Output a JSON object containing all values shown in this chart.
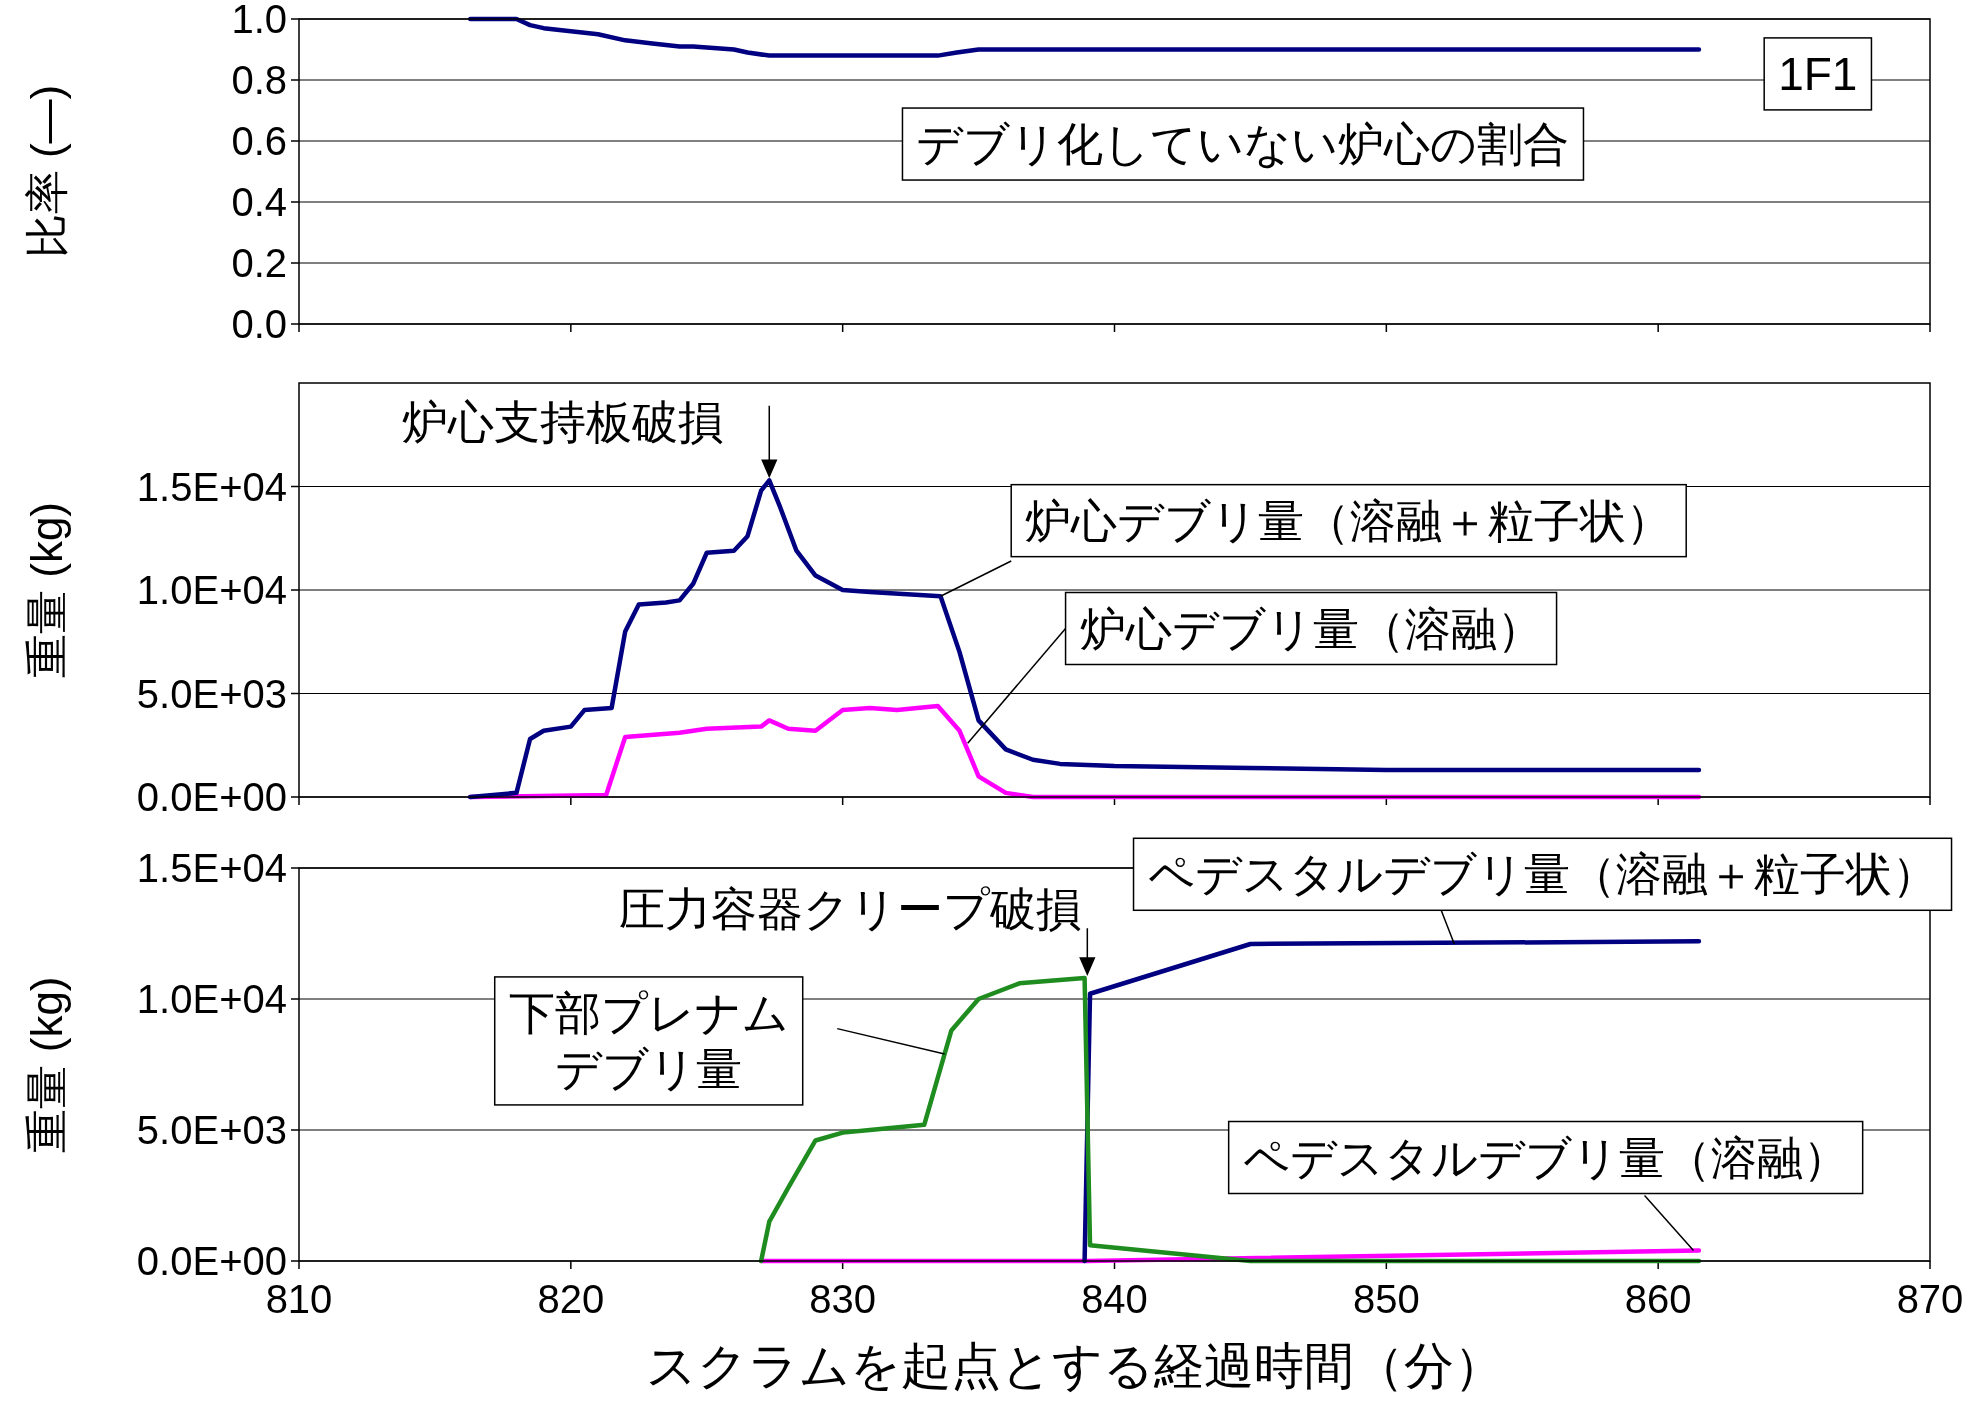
{
  "chart_data": [
    {
      "type": "line",
      "ylabel": "比率 (—)",
      "xlim": [
        810,
        870
      ],
      "xticks": [
        810,
        820,
        830,
        840,
        850,
        860,
        870
      ],
      "tick_labels": "y",
      "ylim": [
        0,
        1
      ],
      "yticks": [
        {
          "value": 0,
          "label": "0.0"
        },
        {
          "value": 0.2,
          "label": "0.2"
        },
        {
          "value": 0.4,
          "label": "0.4"
        },
        {
          "value": 0.6,
          "label": "0.6"
        },
        {
          "value": 0.8,
          "label": "0.8"
        },
        {
          "value": 1,
          "label": "1.0"
        }
      ],
      "grid": "y",
      "series": [
        {
          "color": "#000080",
          "x": [
            816.3,
            818,
            818.5,
            819,
            820,
            821,
            822,
            823,
            824,
            824.5,
            826,
            826.5,
            827.3,
            828,
            830,
            833.5,
            834.2,
            835,
            836,
            838,
            861.5
          ],
          "values": [
            1.0,
            1.0,
            0.98,
            0.97,
            0.96,
            0.95,
            0.93,
            0.92,
            0.91,
            0.91,
            0.9,
            0.89,
            0.88,
            0.88,
            0.88,
            0.88,
            0.89,
            0.9,
            0.9,
            0.9,
            0.9
          ]
        }
      ],
      "annotations": [
        "デブリ化していない炉心の割合",
        "1F1"
      ]
    },
    {
      "type": "line",
      "ylabel": "重量 (kg)",
      "xlim": [
        810,
        870
      ],
      "xticks": [
        810,
        820,
        830,
        840,
        850,
        860,
        870
      ],
      "tick_labels": "y",
      "ylim": [
        0,
        20000
      ],
      "yticks": [
        {
          "value": 0,
          "label": "0.0E+00"
        },
        {
          "value": 5000,
          "label": "5.0E+03"
        },
        {
          "value": 10000,
          "label": "1.0E+04"
        },
        {
          "value": 15000,
          "label": "1.5E+04"
        }
      ],
      "grid": "y",
      "series": [
        {
          "color": "#ff00ff",
          "x": [
            816.3,
            821.3,
            822,
            824,
            825,
            827,
            827.3,
            828,
            829,
            830,
            831,
            832,
            833.5,
            834.3,
            835,
            836,
            837,
            861.5
          ],
          "values": [
            0,
            100,
            2900,
            3100,
            3300,
            3400,
            3700,
            3300,
            3200,
            4200,
            4300,
            4200,
            4400,
            3200,
            1000,
            200,
            0,
            0
          ]
        },
        {
          "color": "#000080",
          "x": [
            816.3,
            818,
            818.5,
            819,
            820,
            820.5,
            821.5,
            822,
            822.5,
            823.5,
            824,
            824.5,
            825,
            826,
            826.5,
            827,
            827.3,
            827.7,
            828.3,
            829,
            830,
            831,
            833.6,
            834.3,
            835,
            836,
            837,
            838,
            840,
            845,
            850,
            861.5
          ],
          "values": [
            0,
            200,
            2800,
            3200,
            3400,
            4200,
            4300,
            8000,
            9300,
            9400,
            9500,
            10300,
            11800,
            11900,
            12600,
            14800,
            15300,
            14000,
            11900,
            10700,
            10000,
            9900,
            9700,
            7000,
            3700,
            2300,
            1800,
            1600,
            1500,
            1400,
            1300,
            1300
          ]
        }
      ],
      "annotations": [
        {
          "text": "炉心支持板破損",
          "x": 827.3,
          "y": 15300
        },
        {
          "text": "炉心デブリ量（溶融＋粒子状）",
          "x": 833.6,
          "y": 9700
        },
        {
          "text": "炉心デブリ量（溶融）",
          "x": 834.6,
          "y": 2600
        }
      ]
    },
    {
      "type": "line",
      "ylabel": "重量 (kg)",
      "xlabel": "スクラムを起点とする経過時間（分）",
      "xlim": [
        810,
        870
      ],
      "xticks": [
        810,
        820,
        830,
        840,
        850,
        860,
        870
      ],
      "ylim": [
        0,
        15000
      ],
      "yticks": [
        {
          "value": 0,
          "label": "0.0E+00"
        },
        {
          "value": 5000,
          "label": "5.0E+03"
        },
        {
          "value": 10000,
          "label": "1.0E+04"
        },
        {
          "value": 15000,
          "label": "1.5E+04"
        }
      ],
      "grid": "y",
      "series": [
        {
          "color": "#ff00ff",
          "x": [
            827,
            839,
            861.5
          ],
          "values": [
            0,
            0,
            400
          ]
        },
        {
          "color": "#000080",
          "x": [
            838.9,
            839.1,
            845,
            861.5
          ],
          "values": [
            0,
            10200,
            12100,
            12200
          ]
        },
        {
          "color": "#1e8c1e",
          "x": [
            827,
            827.3,
            828,
            829,
            830,
            831,
            833,
            834,
            835,
            836.5,
            838.9,
            839.1,
            845,
            861.5
          ],
          "values": [
            0,
            1500,
            2800,
            4600,
            4900,
            5000,
            5200,
            8800,
            10000,
            10600,
            10800,
            600,
            0,
            0
          ]
        }
      ],
      "annotations": [
        {
          "text": "圧力容器クリープ破損",
          "x": 839,
          "y": 10800
        },
        {
          "text": "ペデスタルデブリ量（溶融＋粒子状）",
          "x": 852.5,
          "y": 12100
        },
        {
          "text": "下部プレナムデブリ量",
          "x": 833.75,
          "y": 7900
        },
        {
          "text": "ペデスタルデブリ量（溶融）",
          "x": 861.3,
          "y": 400
        }
      ]
    }
  ]
}
